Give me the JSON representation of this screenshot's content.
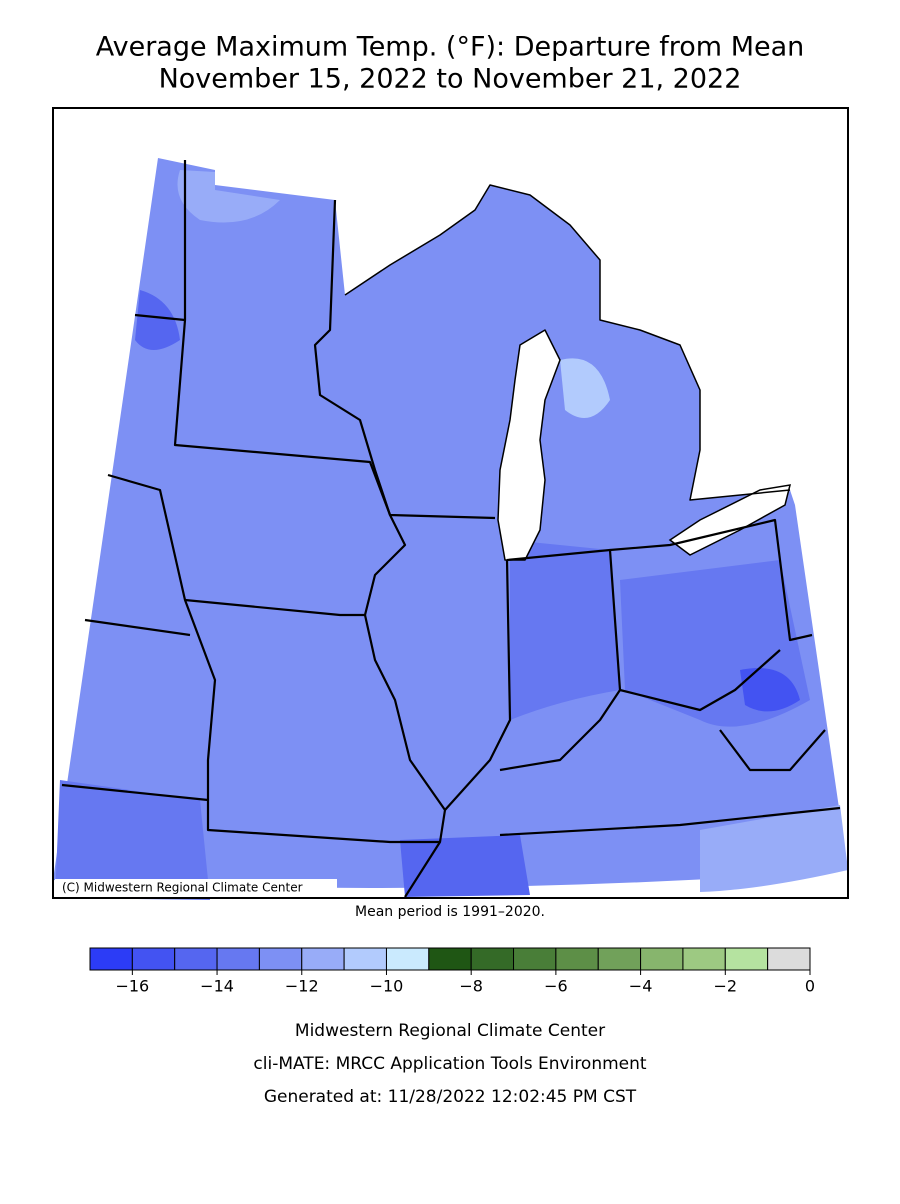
{
  "title": [
    "Average Maximum Temp. (°F): Departure from Mean",
    "November 15, 2022 to November 21, 2022"
  ],
  "map": {
    "credit": "(C) Midwestern Regional Climate Center",
    "note": "Mean period is 1991–2020."
  },
  "legend": {
    "range": [
      -17,
      0
    ],
    "colors": [
      "#2c3cf6",
      "#4353f2",
      "#5566f0",
      "#6678f1",
      "#7d90f4",
      "#98acf8",
      "#b2cbfd",
      "#caeafe",
      "#1f5614",
      "#346a27",
      "#497e38",
      "#5d8f47",
      "#71a15a",
      "#87b56d",
      "#9dc982",
      "#b5e3a0",
      "#dcdcdc"
    ],
    "ticks": [
      {
        "value": -16,
        "label": "−16"
      },
      {
        "value": -14,
        "label": "−14"
      },
      {
        "value": -12,
        "label": "−12"
      },
      {
        "value": -10,
        "label": "−10"
      },
      {
        "value": -8,
        "label": "−8"
      },
      {
        "value": -6,
        "label": "−6"
      },
      {
        "value": -4,
        "label": "−4"
      },
      {
        "value": -2,
        "label": "−2"
      },
      0
    ]
  },
  "footer": [
    "Midwestern Regional Climate Center",
    "cli-MATE: MRCC Application Tools Environment",
    "Generated at: 11/28/2022 12:02:45 PM CST"
  ]
}
